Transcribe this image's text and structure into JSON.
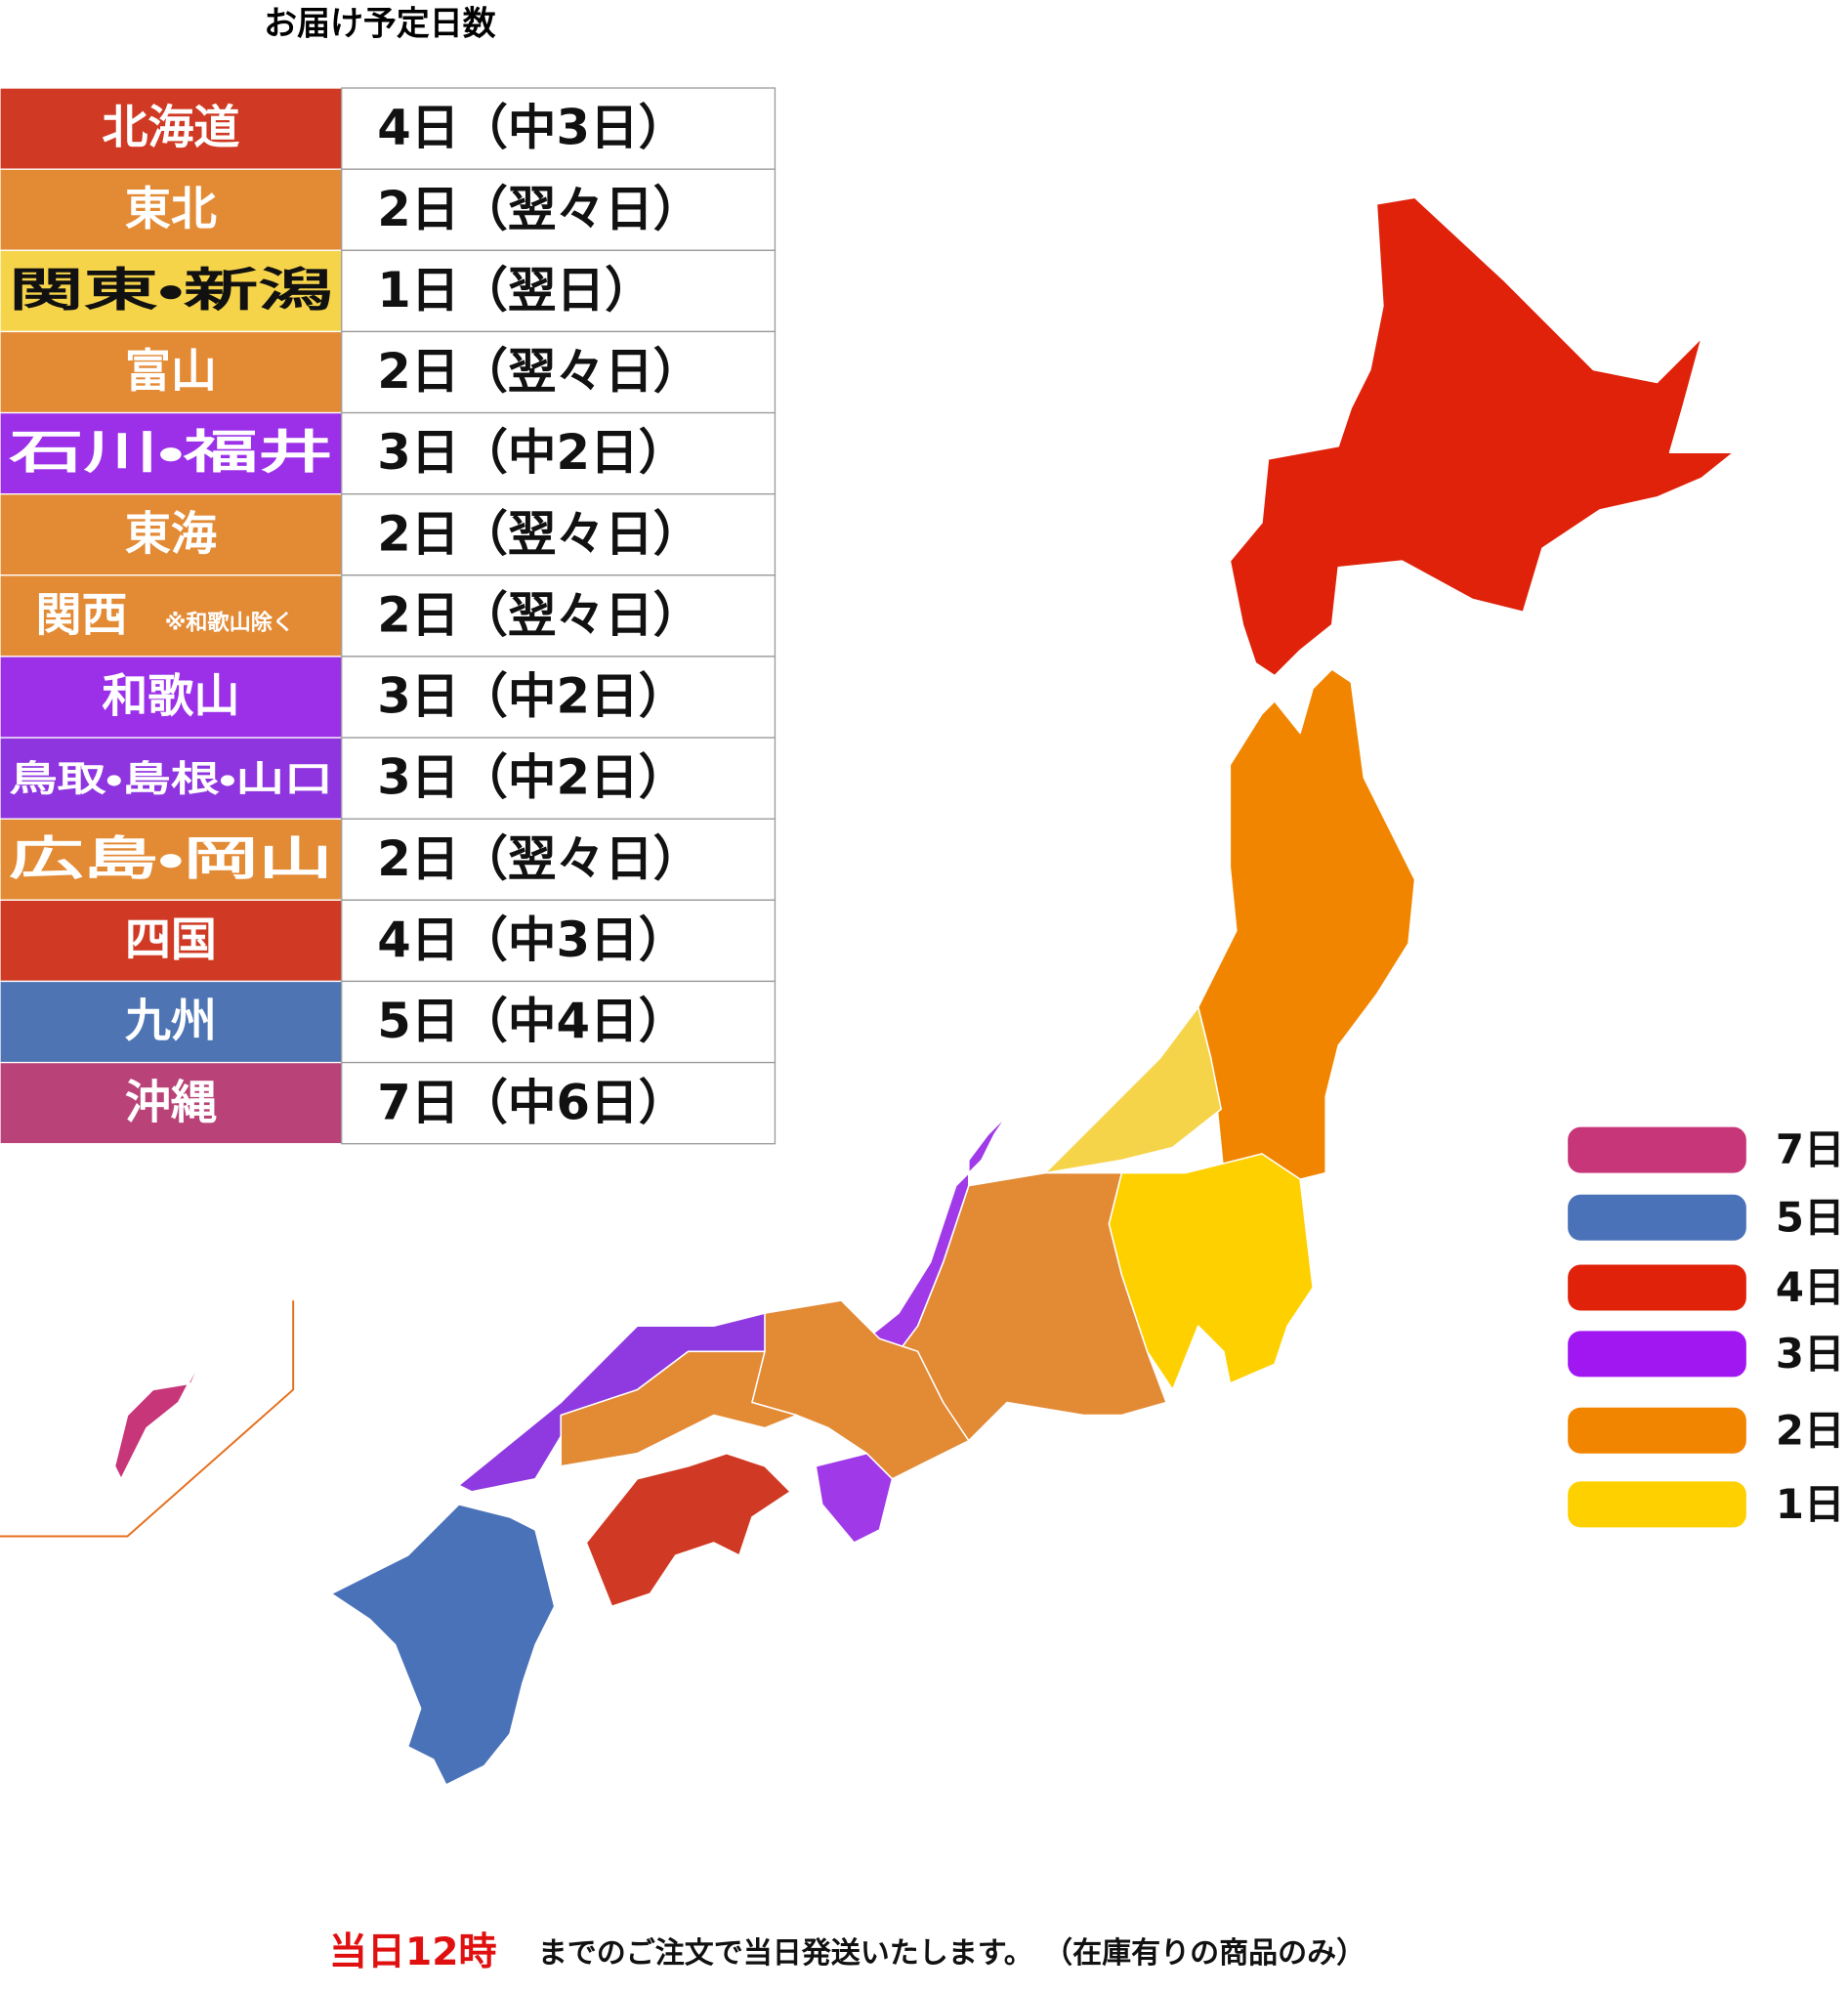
{
  "title": "お届け予定日数",
  "table": {
    "rows": [
      {
        "region": "北海道",
        "days": "4日（中3日）",
        "color": "#d03a24"
      },
      {
        "region": "東北",
        "days": "2日（翌々日）",
        "color": "#e38a35"
      },
      {
        "region": "関東・新潟",
        "days": "1日（翌日）",
        "color": "#f6d44a"
      },
      {
        "region": "富山",
        "days": "2日（翌々日）",
        "color": "#e38a35"
      },
      {
        "region": "石川・福井",
        "days": "3日（中2日）",
        "color": "#9b30e8"
      },
      {
        "region": "東海",
        "days": "2日（翌々日）",
        "color": "#e38a35"
      },
      {
        "region": "関西",
        "note": "※和歌山除く",
        "days": "2日（翌々日）",
        "color": "#e38a35"
      },
      {
        "region": "和歌山",
        "days": "3日（中2日）",
        "color": "#9b30e8"
      },
      {
        "region": "鳥取・島根・山口",
        "days": "3日（中2日）",
        "color": "#8e35e0"
      },
      {
        "region": "広島・岡山",
        "days": "2日（翌々日）",
        "color": "#e38a35"
      },
      {
        "region": "四国",
        "days": "4日（中3日）",
        "color": "#d03a24"
      },
      {
        "region": "九州",
        "days": "5日（中4日）",
        "color": "#4e74b4"
      },
      {
        "region": "沖縄",
        "days": "7日（中6日）",
        "color": "#b94378"
      }
    ]
  },
  "legend": [
    {
      "label": "7日",
      "color": "#c8367a"
    },
    {
      "label": "5日",
      "color": "#4a72b8"
    },
    {
      "label": "4日",
      "color": "#e0220a"
    },
    {
      "label": "3日",
      "color": "#a117f2"
    },
    {
      "label": "2日",
      "color": "#f28500"
    },
    {
      "label": "1日",
      "color": "#ffd000"
    }
  ],
  "footer": {
    "highlight": "当日12時",
    "text": "までのご注文で当日発送いたします。 （在庫有りの商品のみ）"
  }
}
